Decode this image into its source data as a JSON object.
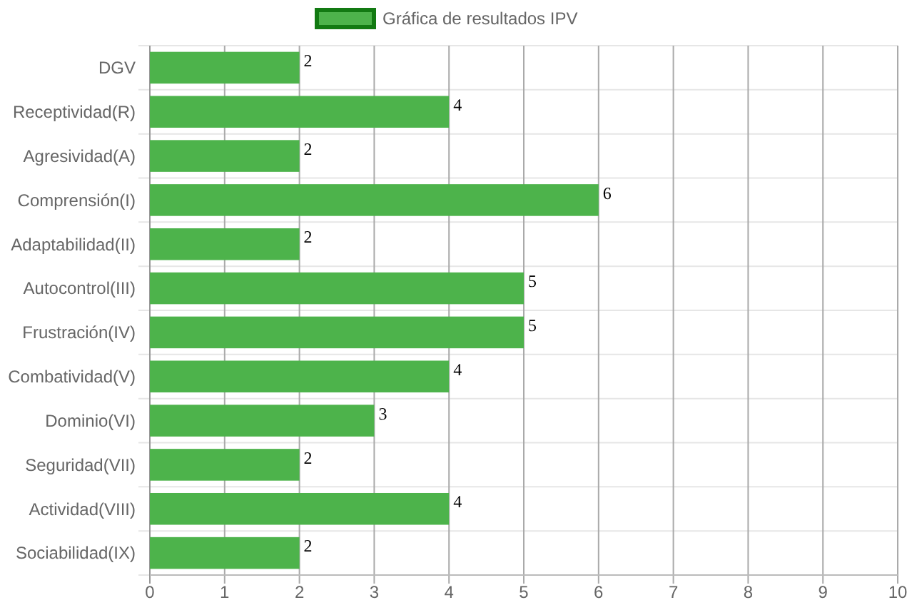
{
  "chart_data": {
    "type": "bar",
    "orientation": "horizontal",
    "categories": [
      "DGV",
      "Receptividad(R)",
      "Agresividad(A)",
      "Comprensión(I)",
      "Adaptabilidad(II)",
      "Autocontrol(III)",
      "Frustración(IV)",
      "Combatividad(V)",
      "Dominio(VI)",
      "Seguridad(VII)",
      "Actividad(VIII)",
      "Sociabilidad(IX)"
    ],
    "series": [
      {
        "name": "Gráfica de resultados IPV",
        "color": "#4db34b",
        "values": [
          2,
          4,
          2,
          6,
          2,
          5,
          5,
          4,
          3,
          2,
          4,
          2
        ]
      }
    ],
    "xlim": [
      0,
      10
    ],
    "xticks": [
      0,
      1,
      2,
      3,
      4,
      5,
      6,
      7,
      8,
      9,
      10
    ],
    "grid": true,
    "legend": "top",
    "data_labels": true
  }
}
